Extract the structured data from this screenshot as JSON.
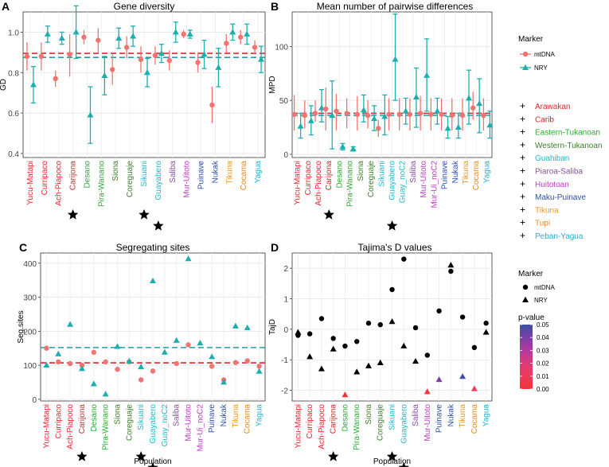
{
  "groups": [
    {
      "name": "Arawakan",
      "color": "#e3242b"
    },
    {
      "name": "Carib",
      "color": "#c42b2b"
    },
    {
      "name": "Eastern-Tukanoan",
      "color": "#2bab35"
    },
    {
      "name": "Western-Tukanoan",
      "color": "#3d7d2a"
    },
    {
      "name": "Guahiban",
      "color": "#1fb8c8"
    },
    {
      "name": "Piaroa-Saliba",
      "color": "#8a4fa3"
    },
    {
      "name": "Huitotoan",
      "color": "#c03cc4"
    },
    {
      "name": "Maku-Puinave",
      "color": "#2e4fa2"
    },
    {
      "name": "Tikuna",
      "color": "#f0961e"
    },
    {
      "name": "Tupi",
      "color": "#e08a2a"
    },
    {
      "name": "Peban-Yagua",
      "color": "#1fb0d0"
    }
  ],
  "group_legend_entries": [
    "Arawakan",
    "Carib",
    "Eastern-Tukanoan",
    "Western-Tukanoan",
    "Guahiban",
    "Piaroa-Saliba",
    "Huitotoan",
    "Maku-Puinave",
    "Tikuna",
    "Tupi",
    "Peban-Yagua"
  ],
  "colors": {
    "mtdna": "#f07470",
    "nry": "#1eaeb0",
    "star": "#000000"
  },
  "marker_legend": {
    "title": "Marker",
    "mtdna": "mtDNA",
    "nry": "NRY"
  },
  "pvalue_legend": {
    "title": "p-value",
    "ticks": [
      "0.05",
      "0.04",
      "0.03",
      "0.02",
      "0.01",
      "0.00"
    ],
    "colors": [
      "#3b4fa0",
      "#7b3fa8",
      "#b43a9c",
      "#de3a78",
      "#ee3a5a",
      "#f0343a"
    ]
  },
  "xlabel_shared": "Population",
  "chart_data": [
    {
      "panel": "A",
      "type": "scatter",
      "title": "Gene diversity",
      "ylabel": "GD",
      "ylim": [
        0.38,
        1.1
      ],
      "yticks": [
        0.4,
        0.6,
        0.8,
        1.0
      ],
      "ytick_labels": [
        "0.4",
        "0.6",
        "0.8",
        "1.0"
      ],
      "categories": [
        "Yucu-Matapi",
        "Curripaco",
        "Ach-Piapoco",
        "Carijona",
        "Desano",
        "Pira-Wanano",
        "Siona",
        "Coreguaje",
        "Sikuani",
        "Guayabero",
        "Saliba",
        "Mur-Uitoto",
        "Puinave",
        "Nukak",
        "Tikuna",
        "Cocama",
        "Yagua"
      ],
      "category_groups": [
        "Arawakan",
        "Arawakan",
        "Arawakan",
        "Carib",
        "Eastern-Tukanoan",
        "Eastern-Tukanoan",
        "Western-Tukanoan",
        "Western-Tukanoan",
        "Guahiban",
        "Guahiban",
        "Piaroa-Saliba",
        "Huitotoan",
        "Maku-Puinave",
        "Maku-Puinave",
        "Tikuna",
        "Tupi",
        "Peban-Yagua"
      ],
      "starred": [
        "Carijona",
        "Sikuani",
        "Guayabero"
      ],
      "series": [
        {
          "name": "mtDNA",
          "values": [
            0.88,
            0.88,
            0.77,
            0.89,
            0.975,
            0.96,
            0.815,
            0.925,
            0.865,
            0.885,
            0.86,
            0.99,
            0.85,
            0.64,
            0.945,
            0.975,
            0.925
          ],
          "lower": [
            0.81,
            0.81,
            0.73,
            0.78,
            0.94,
            0.9,
            0.74,
            0.87,
            0.8,
            0.84,
            0.81,
            0.97,
            0.8,
            0.55,
            0.9,
            0.94,
            0.89
          ],
          "upper": [
            0.95,
            0.95,
            0.81,
            0.99,
            1.01,
            1.02,
            0.89,
            0.98,
            0.93,
            0.93,
            0.91,
            1.01,
            0.9,
            0.73,
            0.99,
            1.01,
            0.96
          ]
        },
        {
          "name": "NRY",
          "values": [
            0.74,
            0.99,
            0.97,
            1.0,
            0.59,
            0.785,
            0.97,
            0.98,
            0.8,
            0.895,
            1.0,
            0.99,
            0.89,
            0.825,
            1.0,
            0.99,
            0.865
          ]
        },
        {
          "name": "NRY_lower",
          "values": [
            0.65,
            0.95,
            0.94,
            0.87,
            0.45,
            0.69,
            0.92,
            0.93,
            0.73,
            0.85,
            0.95,
            0.97,
            0.82,
            0.73,
            0.96,
            0.94,
            0.8
          ]
        },
        {
          "name": "NRY_upper",
          "values": [
            0.83,
            1.03,
            1.0,
            1.13,
            0.73,
            0.88,
            1.02,
            1.03,
            0.87,
            0.94,
            1.05,
            1.01,
            0.96,
            0.92,
            1.04,
            1.04,
            0.93
          ]
        }
      ],
      "reference_lines": {
        "mtDNA": 0.895,
        "NRY": 0.875
      }
    },
    {
      "panel": "B",
      "type": "scatter",
      "title": "Mean number of pairwise differences",
      "ylabel": "MPD",
      "ylim": [
        -3,
        132
      ],
      "yticks": [
        0,
        50,
        100
      ],
      "ytick_labels": [
        "0",
        "50",
        "100"
      ],
      "categories": [
        "Yucu-Matapi",
        "Curripaco",
        "Ach-Piapoco",
        "Carijona",
        "Desano",
        "Pira-Wanano",
        "Siona",
        "Coreguaje",
        "Sikuani",
        "Guayabero",
        "Guay_noC2",
        "Saliba",
        "Mur-Uitoto",
        "Mur-Ui_noC2",
        "Puinave",
        "Nukak",
        "Tikuna",
        "Cocama",
        "Yagua"
      ],
      "category_groups": [
        "Arawakan",
        "Arawakan",
        "Arawakan",
        "Carib",
        "Eastern-Tukanoan",
        "Eastern-Tukanoan",
        "Western-Tukanoan",
        "Western-Tukanoan",
        "Guahiban",
        "Guahiban",
        "Guahiban",
        "Piaroa-Saliba",
        "Huitotoan",
        "Huitotoan",
        "Maku-Puinave",
        "Maku-Puinave",
        "Tikuna",
        "Tupi",
        "Peban-Yagua"
      ],
      "starred": [
        "Carijona",
        "Guayabero"
      ],
      "series": [
        {
          "name": "mtDNA",
          "values": [
            37,
            36,
            38,
            42,
            40,
            38,
            37,
            36,
            24,
            37,
            37,
            37,
            38,
            37,
            37,
            36,
            36,
            43,
            36
          ],
          "lower": [
            22,
            24,
            30,
            22,
            22,
            24,
            22,
            24,
            16,
            22,
            22,
            22,
            22,
            22,
            22,
            22,
            22,
            32,
            22
          ],
          "upper": [
            55,
            50,
            50,
            62,
            56,
            52,
            54,
            50,
            32,
            52,
            52,
            52,
            54,
            52,
            52,
            52,
            52,
            58,
            52
          ]
        },
        {
          "name": "NRY",
          "values": [
            26,
            31,
            43,
            36,
            7,
            5,
            41,
            33,
            35,
            88,
            40,
            53,
            73,
            40,
            24,
            25,
            52,
            47,
            27
          ]
        },
        {
          "name": "NRY_lower",
          "values": [
            15,
            18,
            30,
            5,
            4,
            3,
            30,
            22,
            18,
            50,
            28,
            25,
            40,
            28,
            15,
            15,
            28,
            20,
            15
          ]
        },
        {
          "name": "NRY_upper",
          "values": [
            38,
            45,
            60,
            68,
            10,
            7,
            55,
            45,
            55,
            130,
            52,
            80,
            107,
            52,
            35,
            38,
            78,
            70,
            40
          ]
        }
      ],
      "reference_lines": {
        "mtDNA": 38,
        "NRY": 36
      }
    },
    {
      "panel": "C",
      "type": "scatter",
      "title": "Segregating sites",
      "ylabel": "Seg.sites",
      "xlabel": "Population",
      "ylim": [
        -5,
        430
      ],
      "yticks": [
        0,
        100,
        200,
        300,
        400
      ],
      "ytick_labels": [
        "0",
        "100",
        "200",
        "300",
        "400"
      ],
      "categories": [
        "Yucu-Matapi",
        "Curripaco",
        "Ach-Piapoco",
        "Carijona",
        "Desano",
        "Pira-Wanano",
        "Siona",
        "Coreguaje",
        "Sikuani",
        "Guayabero",
        "Guay_noC2",
        "Saliba",
        "Mur-Uitoto",
        "Mur-Ui_noC2",
        "Puinave",
        "Nukak",
        "Tikuna",
        "Cocama",
        "Yagua"
      ],
      "category_groups": [
        "Arawakan",
        "Arawakan",
        "Arawakan",
        "Carib",
        "Eastern-Tukanoan",
        "Eastern-Tukanoan",
        "Western-Tukanoan",
        "Western-Tukanoan",
        "Guahiban",
        "Guahiban",
        "Guahiban",
        "Piaroa-Saliba",
        "Huitotoan",
        "Huitotoan",
        "Maku-Puinave",
        "Maku-Puinave",
        "Tikuna",
        "Tupi",
        "Peban-Yagua"
      ],
      "starred": [
        "Carijona",
        "Sikuani",
        "Guayabero"
      ],
      "series": [
        {
          "name": "mtDNA",
          "values": [
            150,
            110,
            105,
            100,
            138,
            110,
            88,
            110,
            57,
            83,
            null,
            105,
            160,
            null,
            97,
            57,
            108,
            113,
            97
          ]
        },
        {
          "name": "NRY",
          "values": [
            100,
            133,
            220,
            90,
            45,
            15,
            155,
            112,
            95,
            348,
            138,
            173,
            413,
            165,
            125,
            50,
            215,
            210,
            82
          ]
        }
      ],
      "reference_lines": {
        "mtDNA": 107,
        "NRY": 152
      }
    },
    {
      "panel": "D",
      "type": "scatter",
      "title": "Tajima's D values",
      "ylabel": "TajD",
      "xlabel": "Population",
      "ylim": [
        -2.35,
        2.5
      ],
      "yticks": [
        -2,
        -1,
        0,
        1,
        2
      ],
      "ytick_labels": [
        "-2",
        "-1",
        "0",
        "1",
        "2"
      ],
      "categories": [
        "Yucu-Matapi",
        "Curripaco",
        "Ach-Piapoco",
        "Carijona",
        "Desano",
        "Pira-Wanano",
        "Siona",
        "Coreguaje",
        "Sikuani",
        "Guayabero",
        "Saliba",
        "Mur-Uitoto",
        "Puinave",
        "Nukak",
        "Tikuna",
        "Cocama",
        "Yagua"
      ],
      "category_groups": [
        "Arawakan",
        "Arawakan",
        "Arawakan",
        "Carib",
        "Eastern-Tukanoan",
        "Eastern-Tukanoan",
        "Western-Tukanoan",
        "Western-Tukanoan",
        "Guahiban",
        "Guahiban",
        "Piaroa-Saliba",
        "Huitotoan",
        "Maku-Puinave",
        "Maku-Puinave",
        "Tikuna",
        "Tupi",
        "Peban-Yagua"
      ],
      "starred": [
        "Carijona",
        "Sikuani",
        "Guayabero"
      ],
      "series": [
        {
          "name": "mtDNA",
          "values": [
            -0.2,
            -0.15,
            0.35,
            -0.3,
            -0.55,
            -0.4,
            0.2,
            0.15,
            1.3,
            2.3,
            0.05,
            -0.85,
            0.6,
            1.9,
            0.4,
            -0.6,
            0.2
          ]
        },
        {
          "name": "NRY",
          "values": [
            -0.1,
            -0.9,
            -1.3,
            -0.65,
            -2.15,
            -1.4,
            -1.2,
            -1.1,
            0.25,
            -0.55,
            -1.05,
            -2.05,
            -1.65,
            2.1,
            -1.55,
            -1.95,
            -0.1
          ]
        }
      ],
      "significant_mtDNA": [],
      "significant_NRY": {
        "Desano": 0.0,
        "Mur-Uitoto": 0.005,
        "Puinave": 0.04,
        "Tikuna": 0.05,
        "Cocama": 0.01
      }
    }
  ]
}
